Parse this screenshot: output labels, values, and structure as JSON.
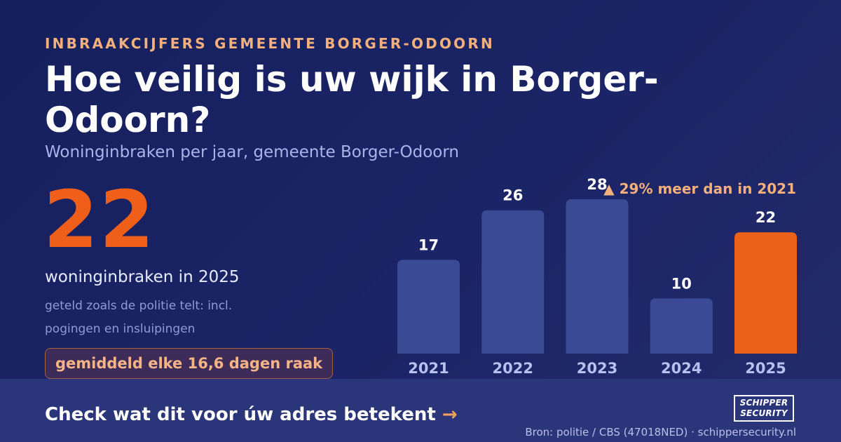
{
  "header": {
    "eyebrow": "INBRAAKCIJFERS GEMEENTE BORGER-ODOORN",
    "title": "Hoe veilig is uw wijk in Borger-Odoorn?",
    "subtitle": "Woninginbraken per jaar, gemeente Borger-Odoorn"
  },
  "highlight": {
    "number": "22",
    "label": "woninginbraken in 2025",
    "note": "geteld zoals de politie telt: incl. pogingen en insluipingen",
    "badge": "gemiddeld elke 16,6 dagen raak"
  },
  "chart_data": {
    "type": "bar",
    "categories": [
      "2021",
      "2022",
      "2023",
      "2024",
      "2025"
    ],
    "values": [
      17,
      26,
      28,
      10,
      22
    ],
    "highlight_index": 4,
    "ylim": [
      0,
      28
    ],
    "grid": false,
    "annotation": "▲ 29% meer dan in 2021",
    "colors": {
      "bar": "#3b4a94",
      "highlight": "#ec6118",
      "value_label": "#ffffff",
      "tick_label": "#b7c0ee",
      "annotation": "#f4b07c"
    }
  },
  "footer": {
    "cta_text": "Check wat dit voor úw adres betekent",
    "cta_arrow": "→",
    "logo_line1": "SCHIPPER",
    "logo_line2": "SECURITY",
    "source": "Bron: politie / CBS (47018NED) · schippersecurity.nl"
  }
}
